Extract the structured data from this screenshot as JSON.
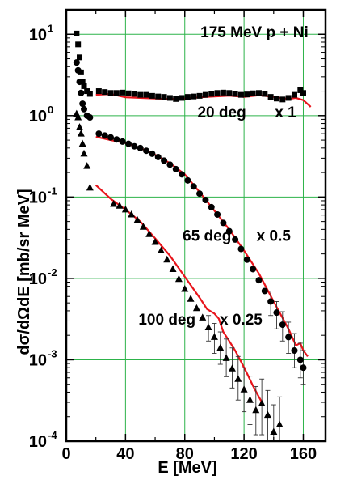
{
  "chart_data": {
    "type": "scatter",
    "title": "175 MeV p + Ni",
    "xlabel": "E [MeV]",
    "ylabel": "dσ/dΩdE  [mb/sr MeV]",
    "xlim": [
      0,
      175
    ],
    "ylim": [
      0.0001,
      20
    ],
    "yscale": "log",
    "grid": true,
    "x_ticks": [
      0,
      40,
      80,
      120,
      160
    ],
    "y_ticks": [
      {
        "value": 0.0001,
        "base": "10",
        "exp": "-4"
      },
      {
        "value": 0.001,
        "base": "10",
        "exp": "-3"
      },
      {
        "value": 0.01,
        "base": "10",
        "exp": "-2"
      },
      {
        "value": 0.1,
        "base": "10",
        "exp": "-1"
      },
      {
        "value": 1,
        "base": "10",
        "exp": "0"
      },
      {
        "value": 10,
        "base": "10",
        "exp": "1"
      }
    ],
    "colors": {
      "data": "#000000",
      "model": "#e8141b",
      "grid": "#2db34a",
      "axis": "#000000"
    },
    "series": [
      {
        "label": "20 deg",
        "scale": "x 1",
        "marker": "square",
        "points": [
          [
            7,
            10.2
          ],
          [
            8,
            7.5
          ],
          [
            9,
            5.2
          ],
          [
            10,
            3.4
          ],
          [
            11,
            2.6
          ],
          [
            12,
            2.3
          ],
          [
            14,
            2.0
          ],
          [
            16,
            1.85
          ],
          [
            22,
            2.0
          ],
          [
            26,
            1.95
          ],
          [
            30,
            1.9
          ],
          [
            34,
            1.9
          ],
          [
            38,
            1.92
          ],
          [
            42,
            1.88
          ],
          [
            46,
            1.85
          ],
          [
            50,
            1.8
          ],
          [
            54,
            1.8
          ],
          [
            58,
            1.75
          ],
          [
            62,
            1.72
          ],
          [
            66,
            1.7
          ],
          [
            70,
            1.65
          ],
          [
            74,
            1.6
          ],
          [
            78,
            1.65
          ],
          [
            82,
            1.7
          ],
          [
            86,
            1.72
          ],
          [
            90,
            1.75
          ],
          [
            94,
            1.8
          ],
          [
            98,
            1.85
          ],
          [
            102,
            1.9
          ],
          [
            106,
            1.92
          ],
          [
            110,
            1.9
          ],
          [
            114,
            1.85
          ],
          [
            118,
            1.8
          ],
          [
            122,
            1.82
          ],
          [
            126,
            1.88
          ],
          [
            130,
            1.9
          ],
          [
            134,
            1.85
          ],
          [
            138,
            1.7
          ],
          [
            142,
            1.62
          ],
          [
            146,
            1.58
          ],
          [
            150,
            1.65
          ],
          [
            154,
            1.8
          ],
          [
            158,
            2.05
          ],
          [
            160,
            1.9
          ]
        ]
      },
      {
        "label": "65 deg",
        "scale": "x 0.5",
        "marker": "circle",
        "points": [
          [
            7,
            4.5
          ],
          [
            8,
            3.6
          ],
          [
            9,
            2.6
          ],
          [
            10,
            1.9
          ],
          [
            11,
            1.4
          ],
          [
            12,
            1.2
          ],
          [
            14,
            1.0
          ],
          [
            16,
            0.95
          ],
          [
            22,
            0.6
          ],
          [
            26,
            0.57
          ],
          [
            30,
            0.54
          ],
          [
            34,
            0.51
          ],
          [
            38,
            0.48
          ],
          [
            42,
            0.45
          ],
          [
            46,
            0.42
          ],
          [
            50,
            0.4
          ],
          [
            54,
            0.37
          ],
          [
            58,
            0.34
          ],
          [
            62,
            0.31
          ],
          [
            66,
            0.28
          ],
          [
            70,
            0.25
          ],
          [
            74,
            0.22
          ],
          [
            78,
            0.19
          ],
          [
            82,
            0.16
          ],
          [
            86,
            0.135
          ],
          [
            90,
            0.11
          ],
          [
            94,
            0.092
          ],
          [
            98,
            0.075
          ],
          [
            102,
            0.061
          ],
          [
            106,
            0.048
          ],
          [
            110,
            0.038
          ],
          [
            114,
            0.03
          ],
          [
            118,
            0.023
          ],
          [
            122,
            0.017
          ],
          [
            126,
            0.013
          ],
          [
            130,
            0.0095
          ],
          [
            134,
            0.007
          ],
          [
            138,
            0.0052
          ],
          [
            142,
            0.0038
          ],
          [
            146,
            0.0027
          ],
          [
            150,
            0.0019
          ],
          [
            154,
            0.0013
          ],
          [
            158,
            0.001
          ],
          [
            160,
            0.0008
          ]
        ],
        "error_bars": [
          [
            138,
            0.0035,
            0.007
          ],
          [
            142,
            0.0024,
            0.0052
          ],
          [
            146,
            0.0017,
            0.0039
          ],
          [
            150,
            0.0012,
            0.0029
          ],
          [
            154,
            0.0008,
            0.0021
          ],
          [
            158,
            0.0006,
            0.0016
          ],
          [
            160,
            0.0005,
            0.0013
          ]
        ]
      },
      {
        "label": "100 deg",
        "scale": "x 0.25",
        "marker": "triangle",
        "points": [
          [
            7,
            1.05
          ],
          [
            8,
            0.95
          ],
          [
            9,
            0.72
          ],
          [
            10,
            0.6
          ],
          [
            11,
            0.45
          ],
          [
            12,
            0.34
          ],
          [
            14,
            0.24
          ],
          [
            16,
            0.13
          ],
          [
            32,
            0.082
          ],
          [
            36,
            0.078
          ],
          [
            40,
            0.07
          ],
          [
            44,
            0.061
          ],
          [
            48,
            0.052
          ],
          [
            52,
            0.043
          ],
          [
            56,
            0.035
          ],
          [
            60,
            0.028
          ],
          [
            64,
            0.022
          ],
          [
            68,
            0.017
          ],
          [
            72,
            0.013
          ],
          [
            76,
            0.0098
          ],
          [
            80,
            0.0074
          ],
          [
            84,
            0.0056
          ],
          [
            88,
            0.0043
          ],
          [
            92,
            0.0033
          ],
          [
            96,
            0.0025
          ],
          [
            100,
            0.0019
          ],
          [
            104,
            0.0014
          ],
          [
            108,
            0.00105
          ],
          [
            112,
            0.00078
          ],
          [
            116,
            0.00058
          ],
          [
            120,
            0.00043
          ],
          [
            124,
            0.00032
          ],
          [
            128,
            0.00024
          ],
          [
            132,
            0.00029
          ],
          [
            136,
            0.00021
          ],
          [
            140,
            0.00013
          ],
          [
            144,
            0.00016
          ]
        ],
        "error_bars": [
          [
            96,
            0.0017,
            0.0035
          ],
          [
            100,
            0.0012,
            0.0028
          ],
          [
            104,
            0.00088,
            0.0022
          ],
          [
            108,
            0.00062,
            0.0018
          ],
          [
            112,
            0.00045,
            0.0014
          ],
          [
            116,
            0.00032,
            0.0011
          ],
          [
            120,
            0.00023,
            0.0008
          ],
          [
            124,
            0.00016,
            0.00063
          ],
          [
            128,
            0.00012,
            0.00047
          ],
          [
            132,
            0.00012,
            0.00058
          ],
          [
            136,
            0.0001,
            0.00042
          ],
          [
            140,
            0.0001,
            0.00028
          ],
          [
            144,
            0.0001,
            0.00035
          ]
        ]
      }
    ],
    "model_curves": [
      {
        "label": "20 deg model",
        "points": [
          [
            20,
            1.8
          ],
          [
            30,
            1.85
          ],
          [
            40,
            1.68
          ],
          [
            50,
            1.65
          ],
          [
            60,
            1.62
          ],
          [
            70,
            1.6
          ],
          [
            80,
            1.62
          ],
          [
            90,
            1.68
          ],
          [
            100,
            1.72
          ],
          [
            110,
            1.76
          ],
          [
            120,
            1.7
          ],
          [
            130,
            1.78
          ],
          [
            140,
            1.7
          ],
          [
            150,
            1.6
          ],
          [
            155,
            1.65
          ],
          [
            160,
            1.55
          ],
          [
            165,
            1.28
          ]
        ]
      },
      {
        "label": "65 deg model",
        "points": [
          [
            20,
            0.55
          ],
          [
            30,
            0.5
          ],
          [
            40,
            0.46
          ],
          [
            50,
            0.4
          ],
          [
            60,
            0.33
          ],
          [
            70,
            0.26
          ],
          [
            80,
            0.19
          ],
          [
            90,
            0.115
          ],
          [
            100,
            0.068
          ],
          [
            110,
            0.04
          ],
          [
            120,
            0.022
          ],
          [
            130,
            0.0115
          ],
          [
            140,
            0.0052
          ],
          [
            150,
            0.0024
          ],
          [
            155,
            0.0015
          ],
          [
            158,
            0.0016
          ],
          [
            160,
            0.0013
          ],
          [
            163,
            0.0011
          ]
        ]
      },
      {
        "label": "100 deg model",
        "points": [
          [
            20,
            0.14
          ],
          [
            30,
            0.095
          ],
          [
            40,
            0.07
          ],
          [
            50,
            0.05
          ],
          [
            60,
            0.031
          ],
          [
            70,
            0.019
          ],
          [
            80,
            0.0105
          ],
          [
            90,
            0.0058
          ],
          [
            95,
            0.0042
          ],
          [
            100,
            0.0037
          ],
          [
            103,
            0.0032
          ],
          [
            106,
            0.0022
          ],
          [
            110,
            0.0017
          ],
          [
            114,
            0.0013
          ],
          [
            118,
            0.00095
          ],
          [
            122,
            0.00068
          ],
          [
            126,
            0.00048
          ],
          [
            130,
            0.00035
          ],
          [
            133,
            0.00028
          ]
        ]
      }
    ],
    "annotations": [
      {
        "text": "175 MeV p + Ni",
        "x": 127,
        "y": 9.2
      },
      {
        "text": "20 deg",
        "x": 105,
        "y": 0.95
      },
      {
        "text": "x 1",
        "x": 148,
        "y": 0.95
      },
      {
        "text": "65 deg",
        "x": 95,
        "y": 0.029
      },
      {
        "text": "x 0.5",
        "x": 140,
        "y": 0.029
      },
      {
        "text": "100 deg",
        "x": 68,
        "y": 0.0027
      },
      {
        "text": "x 0.25",
        "x": 118,
        "y": 0.0027
      }
    ]
  }
}
